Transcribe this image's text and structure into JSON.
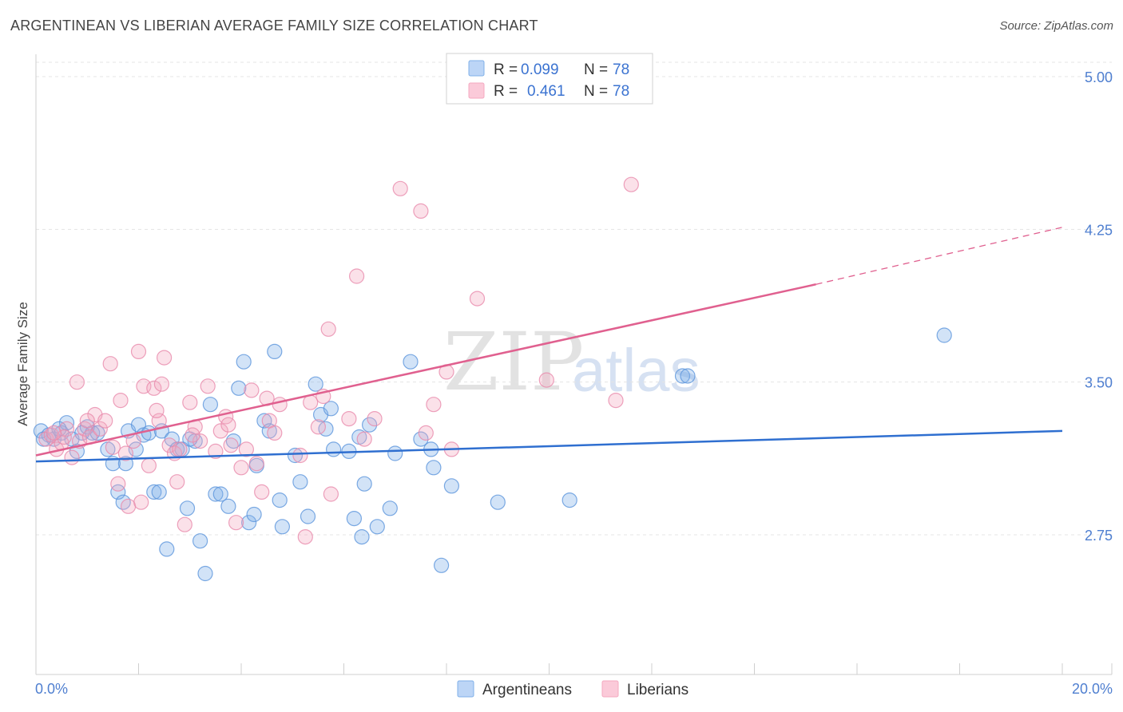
{
  "title": "ARGENTINEAN VS LIBERIAN AVERAGE FAMILY SIZE CORRELATION CHART",
  "source": "Source: ZipAtlas.com",
  "watermark": {
    "zip": "ZIP",
    "atlas": "atlas"
  },
  "legend": {
    "rows": [
      {
        "r_label": "R =",
        "r_value": "0.099",
        "n_label": "N =",
        "n_value": "78",
        "color": "#7fb0e8"
      },
      {
        "r_label": "R =",
        "r_value": "0.461",
        "n_label": "N =",
        "n_value": "78",
        "color": "#f4a8c0"
      }
    ]
  },
  "bottom_legend": [
    "Argentineans",
    "Liberians"
  ],
  "chart_data": {
    "type": "scatter",
    "xlabel": "",
    "ylabel": "Average Family Size",
    "xlim": [
      0,
      20
    ],
    "ylim": [
      2.0,
      5.2
    ],
    "x_tick_labels": [
      "0.0%",
      "20.0%"
    ],
    "y_ticks": [
      2.75,
      3.5,
      4.25,
      5.0
    ],
    "y_tick_labels": [
      "2.75",
      "3.50",
      "4.25",
      "5.00"
    ],
    "grid": true,
    "series": [
      {
        "name": "Argentineans",
        "color": "#7fb0e8",
        "trend": {
          "x0": 0,
          "y0": 3.11,
          "x1": 20,
          "y1": 3.26,
          "color": "#2f6fd0"
        },
        "points": [
          [
            0.1,
            3.26
          ],
          [
            0.25,
            3.24
          ],
          [
            0.35,
            3.22
          ],
          [
            0.5,
            3.25
          ],
          [
            0.6,
            3.3
          ],
          [
            0.7,
            3.22
          ],
          [
            0.8,
            3.16
          ],
          [
            0.9,
            3.25
          ],
          [
            1.0,
            3.28
          ],
          [
            1.1,
            3.25
          ],
          [
            1.4,
            3.17
          ],
          [
            1.5,
            3.1
          ],
          [
            1.6,
            2.96
          ],
          [
            1.7,
            2.91
          ],
          [
            1.75,
            3.1
          ],
          [
            1.8,
            3.26
          ],
          [
            1.95,
            3.17
          ],
          [
            2.0,
            3.29
          ],
          [
            2.1,
            3.24
          ],
          [
            2.2,
            3.25
          ],
          [
            2.3,
            2.96
          ],
          [
            2.4,
            2.96
          ],
          [
            2.45,
            3.26
          ],
          [
            2.55,
            2.68
          ],
          [
            2.65,
            3.22
          ],
          [
            2.75,
            3.17
          ],
          [
            2.85,
            3.17
          ],
          [
            2.95,
            2.88
          ],
          [
            3.1,
            3.21
          ],
          [
            3.2,
            2.72
          ],
          [
            3.3,
            2.56
          ],
          [
            3.4,
            3.39
          ],
          [
            3.5,
            2.95
          ],
          [
            3.6,
            2.95
          ],
          [
            3.75,
            2.89
          ],
          [
            3.85,
            3.21
          ],
          [
            3.95,
            3.47
          ],
          [
            4.05,
            3.6
          ],
          [
            4.15,
            2.81
          ],
          [
            4.25,
            2.85
          ],
          [
            4.3,
            3.09
          ],
          [
            4.45,
            3.31
          ],
          [
            4.55,
            3.26
          ],
          [
            4.65,
            3.65
          ],
          [
            4.75,
            2.92
          ],
          [
            4.8,
            2.79
          ],
          [
            5.15,
            3.01
          ],
          [
            5.3,
            2.84
          ],
          [
            5.45,
            3.49
          ],
          [
            5.55,
            3.34
          ],
          [
            5.65,
            3.27
          ],
          [
            5.75,
            3.37
          ],
          [
            5.8,
            3.17
          ],
          [
            6.1,
            3.16
          ],
          [
            6.2,
            2.83
          ],
          [
            6.3,
            3.23
          ],
          [
            6.35,
            2.74
          ],
          [
            6.4,
            3.0
          ],
          [
            6.5,
            3.29
          ],
          [
            6.65,
            2.79
          ],
          [
            6.9,
            2.88
          ],
          [
            7.0,
            3.15
          ],
          [
            7.3,
            3.6
          ],
          [
            7.5,
            3.22
          ],
          [
            7.7,
            3.17
          ],
          [
            7.75,
            3.08
          ],
          [
            7.9,
            2.6
          ],
          [
            8.1,
            2.99
          ],
          [
            9.0,
            2.91
          ],
          [
            10.4,
            2.92
          ],
          [
            12.6,
            3.53
          ],
          [
            12.7,
            3.53
          ],
          [
            17.7,
            3.73
          ],
          [
            0.15,
            3.22
          ],
          [
            0.45,
            3.27
          ],
          [
            1.2,
            3.25
          ],
          [
            5.05,
            3.14
          ],
          [
            3.0,
            3.22
          ]
        ]
      },
      {
        "name": "Liberians",
        "color": "#f4a8c0",
        "trend": {
          "x0": 0,
          "y0": 3.14,
          "x1": 15.2,
          "y1": 3.98,
          "x_ext": 20,
          "y_ext": 4.26,
          "color": "#e0608f"
        },
        "points": [
          [
            0.2,
            3.22
          ],
          [
            0.3,
            3.24
          ],
          [
            0.4,
            3.17
          ],
          [
            0.5,
            3.2
          ],
          [
            0.6,
            3.27
          ],
          [
            0.7,
            3.13
          ],
          [
            0.8,
            3.5
          ],
          [
            0.85,
            3.21
          ],
          [
            0.95,
            3.27
          ],
          [
            1.05,
            3.23
          ],
          [
            1.15,
            3.34
          ],
          [
            1.25,
            3.27
          ],
          [
            1.35,
            3.31
          ],
          [
            1.45,
            3.59
          ],
          [
            1.5,
            3.18
          ],
          [
            1.6,
            3.0
          ],
          [
            1.65,
            3.41
          ],
          [
            1.75,
            3.15
          ],
          [
            1.8,
            2.89
          ],
          [
            1.9,
            3.21
          ],
          [
            2.0,
            3.65
          ],
          [
            2.05,
            2.91
          ],
          [
            2.1,
            3.48
          ],
          [
            2.2,
            3.09
          ],
          [
            2.3,
            3.47
          ],
          [
            2.4,
            3.31
          ],
          [
            2.45,
            3.49
          ],
          [
            2.5,
            3.62
          ],
          [
            2.6,
            3.19
          ],
          [
            2.7,
            3.15
          ],
          [
            2.75,
            3.01
          ],
          [
            2.8,
            3.17
          ],
          [
            2.9,
            2.8
          ],
          [
            3.0,
            3.4
          ],
          [
            3.1,
            3.28
          ],
          [
            3.2,
            3.21
          ],
          [
            3.35,
            3.48
          ],
          [
            3.5,
            3.16
          ],
          [
            3.6,
            3.26
          ],
          [
            3.7,
            3.33
          ],
          [
            3.75,
            3.29
          ],
          [
            3.8,
            3.19
          ],
          [
            3.9,
            2.81
          ],
          [
            4.0,
            3.08
          ],
          [
            4.1,
            3.17
          ],
          [
            4.2,
            3.46
          ],
          [
            4.3,
            3.1
          ],
          [
            4.4,
            2.96
          ],
          [
            4.5,
            3.42
          ],
          [
            4.55,
            3.31
          ],
          [
            4.65,
            3.25
          ],
          [
            4.75,
            3.39
          ],
          [
            5.15,
            3.14
          ],
          [
            5.25,
            2.74
          ],
          [
            5.35,
            3.4
          ],
          [
            5.5,
            3.28
          ],
          [
            5.6,
            3.43
          ],
          [
            5.7,
            3.76
          ],
          [
            5.75,
            2.95
          ],
          [
            6.1,
            3.32
          ],
          [
            6.25,
            4.02
          ],
          [
            6.4,
            3.22
          ],
          [
            7.1,
            4.45
          ],
          [
            7.5,
            4.34
          ],
          [
            7.6,
            3.25
          ],
          [
            7.75,
            3.39
          ],
          [
            8.0,
            3.55
          ],
          [
            8.1,
            3.17
          ],
          [
            8.6,
            3.91
          ],
          [
            9.95,
            3.51
          ],
          [
            11.3,
            3.41
          ],
          [
            11.6,
            4.47
          ],
          [
            0.55,
            3.23
          ],
          [
            1.0,
            3.31
          ],
          [
            2.35,
            3.36
          ],
          [
            3.05,
            3.24
          ],
          [
            0.35,
            3.25
          ],
          [
            6.6,
            3.32
          ]
        ]
      }
    ]
  }
}
